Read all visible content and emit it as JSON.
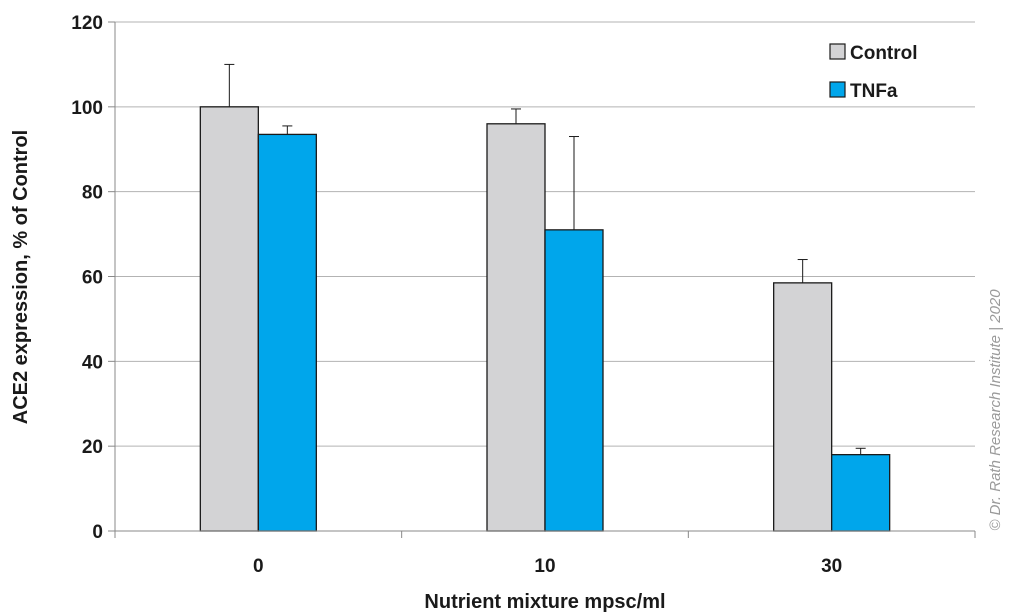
{
  "chart_data": {
    "type": "bar",
    "categories": [
      "0",
      "10",
      "30"
    ],
    "series": [
      {
        "name": "Control",
        "values": [
          100,
          96,
          58.5
        ],
        "errors": [
          10,
          3.5,
          5.5
        ],
        "color": "#d3d3d5"
      },
      {
        "name": "TNFa",
        "values": [
          93.5,
          71,
          18
        ],
        "errors": [
          2,
          22,
          1.5
        ],
        "color": "#00a6eb"
      }
    ],
    "title": "",
    "xlabel": "Nutrient mixture mpsc/ml",
    "ylabel": "ACE2 expression, % of Control",
    "ylim": [
      0,
      120
    ],
    "yticks": [
      "0",
      "20",
      "40",
      "60",
      "80",
      "100",
      "120"
    ],
    "grid": true,
    "legend": "top-right"
  },
  "watermark": "© Dr. Rath Research Institute | 2020"
}
